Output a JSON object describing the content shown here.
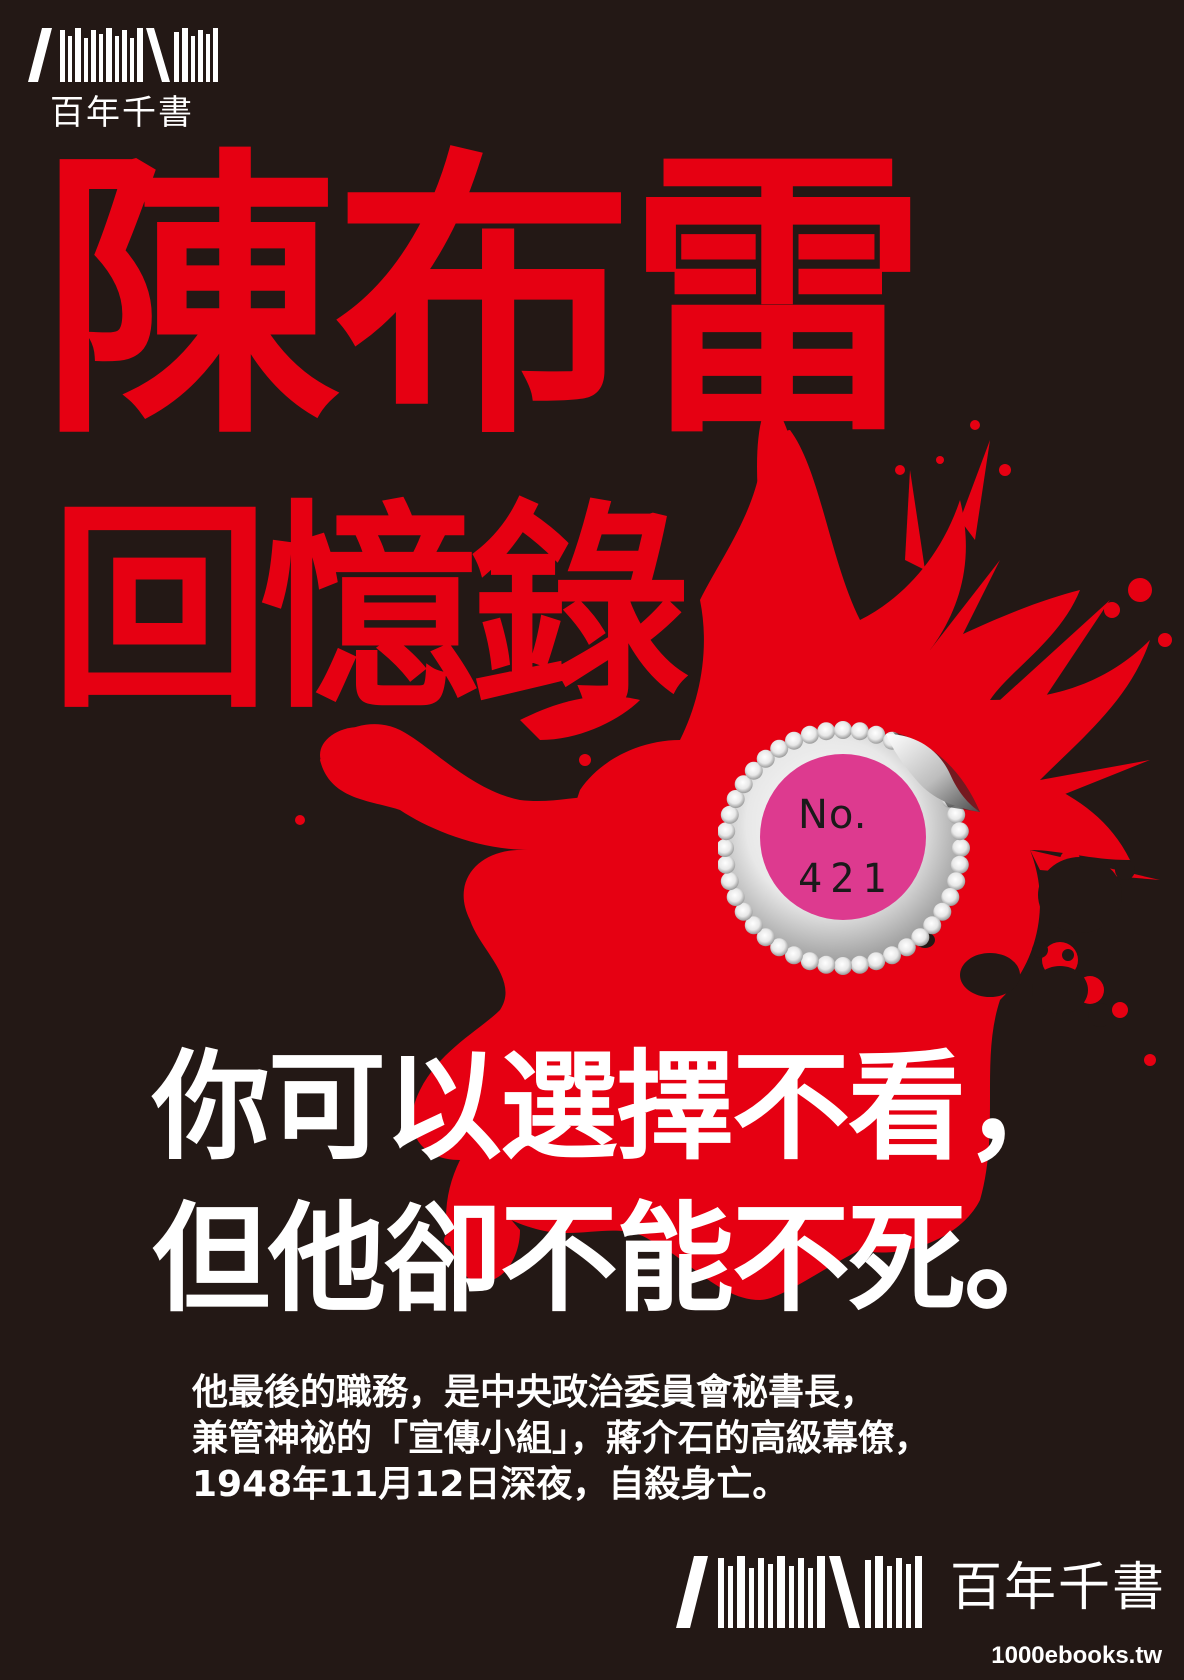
{
  "publisher": {
    "name": "百年千書",
    "url": "1000ebooks.tw"
  },
  "title": {
    "line1": "陳布雷",
    "line2": "回憶錄"
  },
  "stamp": {
    "label": "No.",
    "number": "421"
  },
  "slogan": {
    "line1": "你可以選擇不看，",
    "line2": "但他卻不能不死。"
  },
  "description": {
    "lines": [
      "他最後的職務，是中央政治委員會秘書長，",
      "兼管神祕的「宣傳小組」，蔣介石的高級幕僚，",
      "1948年11月12日深夜，自殺身亡。"
    ]
  },
  "colors": {
    "background": "#231815",
    "accent_red": "#e60012",
    "stamp_pink": "#dd3a8f",
    "text_white": "#ffffff"
  }
}
